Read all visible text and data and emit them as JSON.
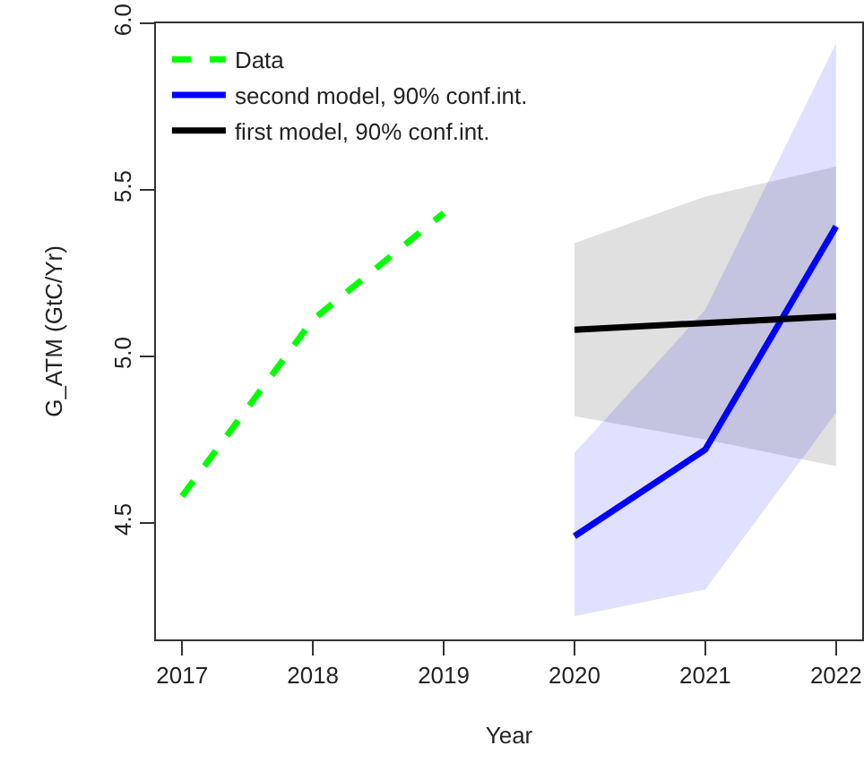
{
  "chart_data": {
    "type": "line",
    "xlabel": "Year",
    "ylabel": "G_ATM (GtC/Yr)",
    "xlim": [
      2016.8,
      2022.2
    ],
    "xticks": [
      2017,
      2018,
      2019,
      2020,
      2021,
      2022
    ],
    "ylim": [
      4.15,
      6.0
    ],
    "yticks": [
      4.5,
      {
        "value": 5.0,
        "label": "5.0"
      },
      5.5,
      {
        "value": 6.0,
        "label": "6.0"
      }
    ],
    "grid": false,
    "legend": "top left",
    "line_style": "solid",
    "series": [
      {
        "name": "Data",
        "color": "#00ff00",
        "line_style": "dashed",
        "x": [
          2017,
          2018,
          2019
        ],
        "values": [
          4.58,
          5.11,
          5.43
        ]
      },
      {
        "name": "second model, 90% conf.int.",
        "color": "#0000ff",
        "x": [
          2020,
          2021,
          2022
        ],
        "values": [
          4.46,
          4.72,
          5.39
        ],
        "lower": [
          4.22,
          4.3,
          4.83
        ],
        "upper": [
          4.71,
          5.14,
          5.94
        ]
      },
      {
        "name": "first model, 90% conf.int.",
        "color": "#000000",
        "x": [
          2020,
          2021,
          2022
        ],
        "values": [
          5.08,
          5.1,
          5.12
        ],
        "lower": [
          4.82,
          4.75,
          4.67
        ],
        "upper": [
          5.34,
          5.48,
          5.57
        ]
      }
    ]
  }
}
